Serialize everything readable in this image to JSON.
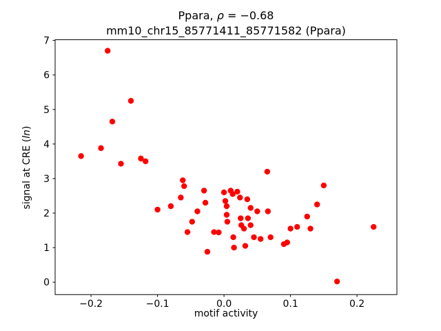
{
  "title": {
    "line1_prefix": "Ppara, ",
    "line1_rho": "ρ",
    "line1_rest": " = −0.68",
    "line2": "mm10_chr15_85771411_85771582 (Ppara)"
  },
  "axes": {
    "xlabel": "motif activity",
    "ylabel_prefix": "signal at CRE (",
    "ylabel_italic": "ln",
    "ylabel_suffix": ")"
  },
  "chart_data": {
    "type": "scatter",
    "title": "Ppara, ρ = −0.68",
    "subtitle": "mm10_chr15_85771411_85771582 (Ppara)",
    "xlabel": "motif activity",
    "ylabel": "signal at CRE (ln)",
    "legend": "none",
    "grid": false,
    "marker": "circle",
    "marker_color": "#ff0000",
    "xlim": [
      -0.254,
      0.26
    ],
    "ylim": [
      -0.36,
      7.02
    ],
    "xticks": {
      "values": [
        -0.2,
        -0.1,
        0.0,
        0.1,
        0.2
      ],
      "labels": [
        "−0.2",
        "−0.1",
        "0.0",
        "0.1",
        "0.2"
      ]
    },
    "yticks": {
      "values": [
        0,
        1,
        2,
        3,
        4,
        5,
        6,
        7
      ],
      "labels": [
        "0",
        "1",
        "2",
        "3",
        "4",
        "5",
        "6",
        "7"
      ]
    },
    "points": [
      [
        -0.215,
        3.65
      ],
      [
        -0.185,
        3.88
      ],
      [
        -0.175,
        6.7
      ],
      [
        -0.168,
        4.65
      ],
      [
        -0.155,
        3.43
      ],
      [
        -0.14,
        5.25
      ],
      [
        -0.125,
        3.58
      ],
      [
        -0.118,
        3.5
      ],
      [
        -0.1,
        2.1
      ],
      [
        -0.08,
        2.2
      ],
      [
        -0.065,
        2.45
      ],
      [
        -0.062,
        2.95
      ],
      [
        -0.06,
        2.78
      ],
      [
        -0.055,
        1.45
      ],
      [
        -0.048,
        1.75
      ],
      [
        -0.04,
        2.05
      ],
      [
        -0.03,
        2.65
      ],
      [
        -0.028,
        2.3
      ],
      [
        -0.025,
        0.88
      ],
      [
        -0.015,
        1.45
      ],
      [
        -0.008,
        1.44
      ],
      [
        0.0,
        2.6
      ],
      [
        0.002,
        2.35
      ],
      [
        0.004,
        2.2
      ],
      [
        0.004,
        1.95
      ],
      [
        0.005,
        1.75
      ],
      [
        0.01,
        2.65
      ],
      [
        0.013,
        2.55
      ],
      [
        0.014,
        1.3
      ],
      [
        0.015,
        1.0
      ],
      [
        0.02,
        2.62
      ],
      [
        0.024,
        2.45
      ],
      [
        0.025,
        1.85
      ],
      [
        0.026,
        1.65
      ],
      [
        0.03,
        1.55
      ],
      [
        0.032,
        1.05
      ],
      [
        0.035,
        2.4
      ],
      [
        0.036,
        1.85
      ],
      [
        0.04,
        2.15
      ],
      [
        0.04,
        1.65
      ],
      [
        0.045,
        1.3
      ],
      [
        0.05,
        2.05
      ],
      [
        0.055,
        1.25
      ],
      [
        0.065,
        3.2
      ],
      [
        0.066,
        2.05
      ],
      [
        0.07,
        1.3
      ],
      [
        0.09,
        1.1
      ],
      [
        0.095,
        1.15
      ],
      [
        0.1,
        1.55
      ],
      [
        0.11,
        1.6
      ],
      [
        0.125,
        1.9
      ],
      [
        0.13,
        1.55
      ],
      [
        0.14,
        2.25
      ],
      [
        0.15,
        2.8
      ],
      [
        0.17,
        0.02
      ],
      [
        0.225,
        1.6
      ]
    ]
  }
}
